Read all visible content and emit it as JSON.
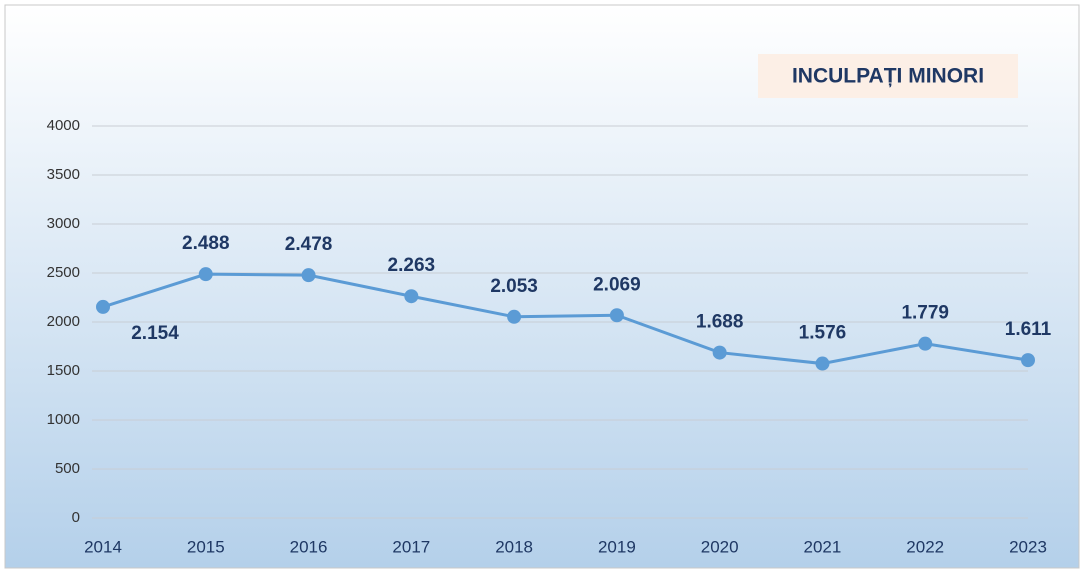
{
  "chart_data": {
    "type": "line",
    "title": "INCULPAȚI MINORI",
    "categories": [
      "2014",
      "2015",
      "2016",
      "2017",
      "2018",
      "2019",
      "2020",
      "2021",
      "2022",
      "2023"
    ],
    "series": [
      {
        "name": "INCULPAȚI MINORI",
        "color": "#5b9bd5",
        "values": [
          2154,
          2488,
          2478,
          2263,
          2053,
          2069,
          1688,
          1576,
          1779,
          1611
        ],
        "value_labels": [
          "2.154",
          "2.488",
          "2.478",
          "2.263",
          "2.053",
          "2.069",
          "1.688",
          "1.576",
          "1.779",
          "1.611"
        ]
      }
    ],
    "ylim": [
      0,
      4000
    ],
    "yticks": [
      0,
      500,
      1000,
      1500,
      2000,
      2500,
      3000,
      3500,
      4000
    ],
    "grid": true
  }
}
